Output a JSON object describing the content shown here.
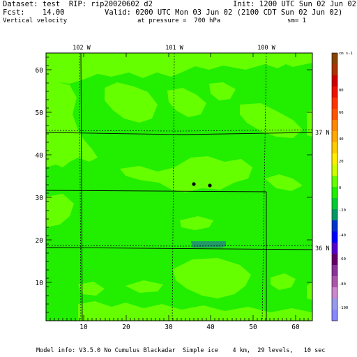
{
  "header": {
    "dataset": "Dataset: test  RIP: rip20020602 d2",
    "init": "Init: 1200 UTC Sun 02 Jun 02",
    "fcst": "Fcst:    14.00",
    "valid": "Valid: 0200 UTC Mon 03 Jun 02 (2100 CDT Sun 02 Jun 02)",
    "field": "Vertical velocity",
    "pressure": "at pressure =  700 hPa",
    "smoothing": "sm= 1"
  },
  "map": {
    "x_ticks": [
      "10",
      "20",
      "30",
      "40",
      "50",
      "60"
    ],
    "y_ticks": [
      "10",
      "20",
      "30",
      "40",
      "50",
      "60"
    ],
    "longitude_labels": [
      "102 W",
      "101 W",
      "100 W"
    ],
    "latitude_labels": [
      "37 N",
      "36 N"
    ],
    "colors": {
      "background_field": "#22ee00",
      "positive_field": "#66ff00",
      "negative_field": "#229966"
    }
  },
  "colorbar": {
    "units": "cm s-1",
    "labels": [
      "80",
      "60",
      "40",
      "20",
      "0",
      "-20",
      "-40",
      "-60",
      "-80",
      "-100"
    ],
    "colors": [
      "#884400",
      "#aa3300",
      "#cc0000",
      "#ee1100",
      "#ff3300",
      "#ff5500",
      "#ff8800",
      "#ffaa00",
      "#ffcc00",
      "#ffee00",
      "#ccff00",
      "#66ff00",
      "#22ee00",
      "#00cc33",
      "#009966",
      "#0033cc",
      "#0000ff",
      "#5500cc",
      "#660066",
      "#883399",
      "#aa55aa",
      "#cc88cc",
      "#9999ee",
      "#8888ff"
    ]
  },
  "footer": "Model info: V3.5.0 No Cumulus Blackadar  Simple ice    4 km,  29 levels,   10 sec"
}
